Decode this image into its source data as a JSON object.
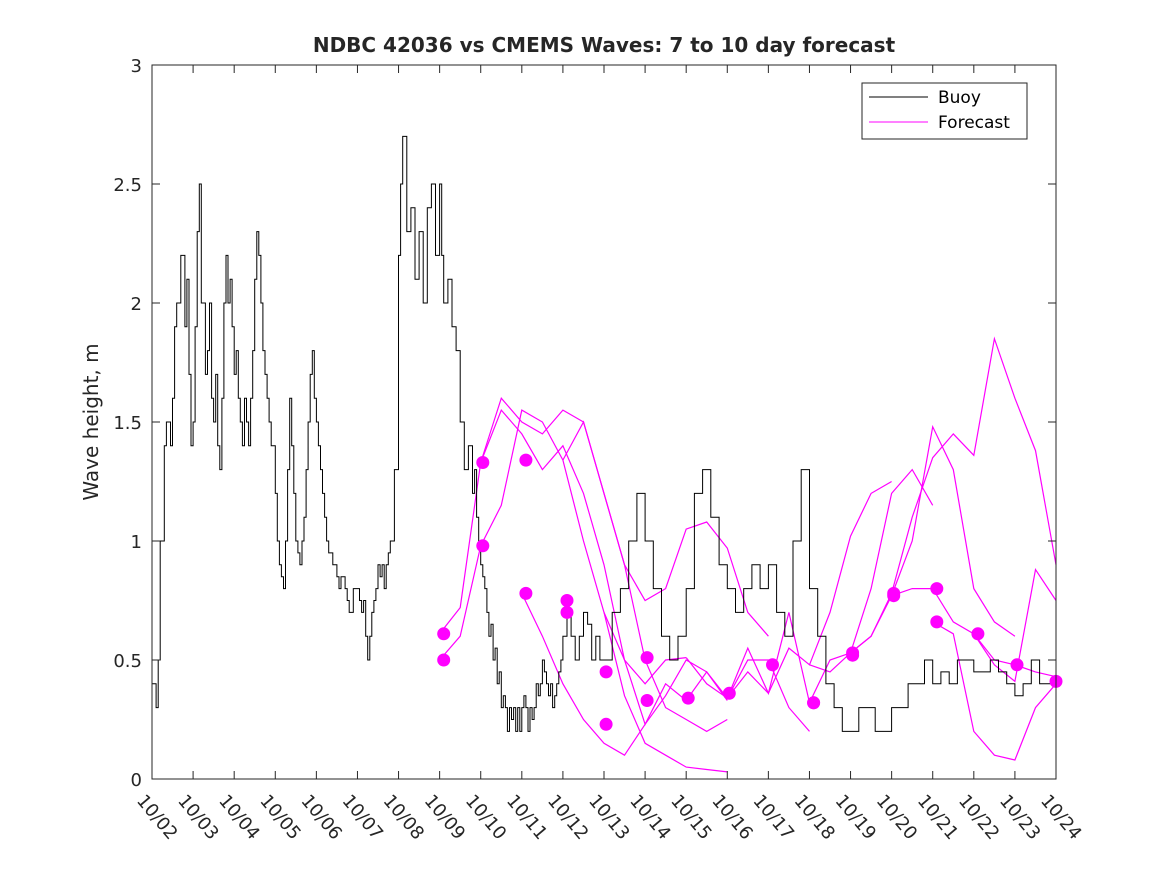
{
  "chart_data": {
    "type": "line",
    "title": "NDBC 42036 vs CMEMS Waves: 7 to 10 day forecast",
    "xlabel": "",
    "ylabel": "Wave height, m",
    "xlim": [
      0,
      22
    ],
    "ylim": [
      0,
      3
    ],
    "yticks": [
      0,
      0.5,
      1,
      1.5,
      2,
      2.5,
      3
    ],
    "ytick_labels": [
      "0",
      "0.5",
      "1",
      "1.5",
      "2",
      "2.5",
      "3"
    ],
    "xtick_labels": [
      "10/02",
      "10/03",
      "10/04",
      "10/05",
      "10/06",
      "10/07",
      "10/08",
      "10/09",
      "10/10",
      "10/11",
      "10/12",
      "10/13",
      "10/14",
      "10/15",
      "10/16",
      "10/17",
      "10/18",
      "10/19",
      "10/20",
      "10/21",
      "10/22",
      "10/23",
      "10/24"
    ],
    "legend": {
      "position": "top-right",
      "entries": [
        {
          "label": "Buoy",
          "color": "#000000"
        },
        {
          "label": "Forecast",
          "color": "#ff00ff"
        }
      ]
    },
    "colors": {
      "buoy": "#000000",
      "forecast": "#ff00ff",
      "axis": "#262626"
    },
    "buoy": {
      "name": "Buoy",
      "x": [
        0,
        0.1,
        0.15,
        0.2,
        0.3,
        0.35,
        0.45,
        0.5,
        0.55,
        0.6,
        0.7,
        0.8,
        0.85,
        0.9,
        0.95,
        1.0,
        1.05,
        1.1,
        1.15,
        1.2,
        1.3,
        1.35,
        1.4,
        1.45,
        1.5,
        1.55,
        1.6,
        1.65,
        1.7,
        1.75,
        1.8,
        1.85,
        1.9,
        1.95,
        2.0,
        2.05,
        2.1,
        2.15,
        2.2,
        2.25,
        2.3,
        2.35,
        2.4,
        2.45,
        2.5,
        2.55,
        2.6,
        2.65,
        2.7,
        2.75,
        2.8,
        2.85,
        2.9,
        3.0,
        3.05,
        3.1,
        3.15,
        3.2,
        3.25,
        3.3,
        3.35,
        3.4,
        3.45,
        3.5,
        3.55,
        3.6,
        3.65,
        3.7,
        3.75,
        3.8,
        3.85,
        3.9,
        3.95,
        4.0,
        4.05,
        4.1,
        4.15,
        4.2,
        4.25,
        4.3,
        4.4,
        4.5,
        4.55,
        4.6,
        4.7,
        4.75,
        4.8,
        4.9,
        5.0,
        5.05,
        5.1,
        5.15,
        5.2,
        5.25,
        5.3,
        5.35,
        5.4,
        5.45,
        5.5,
        5.55,
        5.6,
        5.65,
        5.7,
        5.75,
        5.8,
        5.9,
        6.0,
        6.05,
        6.1,
        6.2,
        6.3,
        6.4,
        6.5,
        6.6,
        6.7,
        6.8,
        6.9,
        7.0,
        7.05,
        7.1,
        7.2,
        7.3,
        7.4,
        7.5,
        7.6,
        7.7,
        7.8,
        7.85,
        7.9,
        7.95,
        8.0,
        8.05,
        8.1,
        8.15,
        8.2,
        8.25,
        8.3,
        8.35,
        8.4,
        8.45,
        8.5,
        8.55,
        8.6,
        8.65,
        8.7,
        8.75,
        8.8,
        8.85,
        8.9,
        8.95,
        9.0,
        9.05,
        9.1,
        9.15,
        9.2,
        9.25,
        9.3,
        9.35,
        9.4,
        9.45,
        9.5,
        9.55,
        9.6,
        9.65,
        9.7,
        9.75,
        9.8,
        9.85,
        9.9,
        9.95,
        10.0,
        10.1,
        10.2,
        10.3,
        10.4,
        10.5,
        10.6,
        10.7,
        10.8,
        10.9,
        11.0,
        11.2,
        11.4,
        11.6,
        11.8,
        12.0,
        12.2,
        12.4,
        12.6,
        12.8,
        13.0,
        13.2,
        13.4,
        13.6,
        13.8,
        14.0,
        14.2,
        14.4,
        14.6,
        14.8,
        15.0,
        15.2,
        15.4,
        15.6,
        15.8,
        16.0,
        16.2,
        16.4,
        16.6,
        16.8,
        17.0,
        17.2,
        17.4,
        17.6,
        17.8,
        18.0,
        18.2,
        18.4,
        18.6,
        18.8,
        19.0,
        19.2,
        19.4,
        19.6,
        19.8,
        20.0,
        20.2,
        20.4,
        20.6,
        20.8,
        21.0,
        21.2,
        21.4,
        21.6,
        21.8,
        22.0
      ],
      "y": [
        0.4,
        0.3,
        0.5,
        1.0,
        1.4,
        1.5,
        1.4,
        1.6,
        1.9,
        2.0,
        2.2,
        1.9,
        2.1,
        1.7,
        1.4,
        1.5,
        1.9,
        2.3,
        2.5,
        2.0,
        1.7,
        1.8,
        2.0,
        1.6,
        1.5,
        1.7,
        1.4,
        1.3,
        1.6,
        2.0,
        2.2,
        2.0,
        2.1,
        1.9,
        1.7,
        1.8,
        1.6,
        1.5,
        1.4,
        1.6,
        1.5,
        1.4,
        1.6,
        1.8,
        2.1,
        2.3,
        2.2,
        2.0,
        1.8,
        1.7,
        1.6,
        1.5,
        1.4,
        1.2,
        1.0,
        0.9,
        0.85,
        0.8,
        1.0,
        1.3,
        1.6,
        1.4,
        1.2,
        1.0,
        0.95,
        0.9,
        1.0,
        1.1,
        1.3,
        1.5,
        1.7,
        1.8,
        1.6,
        1.5,
        1.4,
        1.3,
        1.2,
        1.1,
        1.0,
        0.95,
        0.9,
        0.85,
        0.8,
        0.85,
        0.8,
        0.75,
        0.7,
        0.8,
        0.8,
        0.75,
        0.7,
        0.75,
        0.6,
        0.5,
        0.6,
        0.7,
        0.75,
        0.8,
        0.9,
        0.85,
        0.9,
        0.8,
        0.9,
        0.95,
        1.0,
        1.3,
        2.2,
        2.5,
        2.7,
        2.3,
        2.4,
        2.1,
        2.3,
        2.0,
        2.4,
        2.5,
        2.2,
        2.5,
        2.2,
        2.0,
        2.1,
        1.9,
        1.8,
        1.5,
        1.3,
        1.4,
        1.2,
        1.3,
        1.1,
        1.0,
        0.9,
        0.85,
        0.8,
        0.7,
        0.6,
        0.65,
        0.5,
        0.55,
        0.4,
        0.45,
        0.3,
        0.35,
        0.3,
        0.2,
        0.3,
        0.25,
        0.3,
        0.2,
        0.3,
        0.2,
        0.3,
        0.35,
        0.3,
        0.2,
        0.3,
        0.25,
        0.3,
        0.4,
        0.35,
        0.4,
        0.5,
        0.45,
        0.4,
        0.35,
        0.4,
        0.3,
        0.35,
        0.4,
        0.45,
        0.5,
        0.6,
        0.7,
        0.6,
        0.5,
        0.6,
        0.7,
        0.65,
        0.5,
        0.6,
        0.5,
        0.5,
        0.7,
        0.8,
        1.0,
        1.2,
        1.0,
        0.8,
        0.6,
        0.5,
        0.6,
        0.8,
        1.2,
        1.3,
        1.1,
        0.9,
        0.8,
        0.7,
        0.8,
        0.9,
        0.8,
        0.9,
        0.7,
        0.6,
        1.0,
        1.3,
        0.8,
        0.6,
        0.4,
        0.3,
        0.2,
        0.2,
        0.3,
        0.3,
        0.2,
        0.2,
        0.3,
        0.3,
        0.4,
        0.4,
        0.5,
        0.4,
        0.45,
        0.4,
        0.5,
        0.5,
        0.45,
        0.45,
        0.5,
        0.45,
        0.4,
        0.35,
        0.4,
        0.5,
        0.4,
        0.4,
        0.45
      ]
    },
    "forecast": [
      {
        "name": "Forecast",
        "x": [
          7.0,
          7.5,
          8.0,
          8.5,
          9.0,
          9.5,
          10.0,
          10.5,
          11.0,
          11.5,
          12.0,
          12.5,
          13.0,
          13.5,
          14.0
        ],
        "y": [
          0.5,
          0.6,
          0.98,
          1.15,
          1.55,
          1.5,
          1.34,
          1.0,
          0.7,
          0.35,
          0.15,
          0.1,
          0.05,
          0.04,
          0.03
        ]
      },
      {
        "name": "Forecast",
        "x": [
          7.0,
          7.5,
          8.0,
          8.5,
          9.0,
          9.5,
          10.0,
          10.5,
          11.0,
          11.5,
          12.0,
          12.5,
          13.0
        ],
        "y": [
          0.61,
          0.72,
          1.33,
          1.55,
          1.45,
          1.3,
          1.4,
          1.2,
          0.9,
          0.5,
          0.4,
          0.5,
          0.51
        ]
      },
      {
        "name": "Forecast",
        "x": [
          8.0,
          8.5,
          9.0,
          9.5,
          10.0,
          10.5,
          11.0,
          11.5,
          12.0,
          12.5,
          13.0,
          13.5,
          14.0
        ],
        "y": [
          1.33,
          1.6,
          1.5,
          1.45,
          1.55,
          1.5,
          1.2,
          0.9,
          0.5,
          0.3,
          0.25,
          0.2,
          0.25
        ]
      },
      {
        "name": "Forecast",
        "x": [
          9.0,
          9.5,
          10.0,
          10.5,
          11.0,
          11.5,
          12.0,
          12.5,
          13.0,
          13.5,
          14.0
        ],
        "y": [
          0.78,
          0.6,
          0.4,
          0.25,
          0.15,
          0.1,
          0.23,
          0.35,
          0.5,
          0.45,
          0.33
        ]
      },
      {
        "name": "Forecast",
        "x": [
          10.0,
          10.5,
          11.0,
          11.5,
          12.0,
          12.5,
          13.0,
          13.5,
          14.0,
          14.5,
          15.0
        ],
        "y": [
          1.34,
          1.5,
          1.2,
          0.9,
          0.75,
          0.8,
          1.05,
          1.08,
          0.97,
          0.7,
          0.6
        ]
      },
      {
        "name": "Forecast",
        "x": [
          11.0,
          11.5,
          12.0,
          12.5,
          13.0,
          13.5,
          14.0,
          14.5,
          15.0,
          15.5,
          16.0
        ],
        "y": [
          0.7,
          0.5,
          0.23,
          0.4,
          0.33,
          0.45,
          0.34,
          0.5,
          0.5,
          0.3,
          0.2
        ]
      },
      {
        "name": "Forecast",
        "x": [
          13.0,
          13.5,
          14.0,
          14.5,
          15.0,
          15.5,
          16.0,
          16.5,
          17.0,
          17.5,
          18.0
        ],
        "y": [
          0.51,
          0.4,
          0.34,
          0.45,
          0.36,
          0.55,
          0.48,
          0.7,
          1.02,
          1.2,
          1.25
        ]
      },
      {
        "name": "Forecast",
        "x": [
          14.0,
          14.5,
          15.0,
          15.5,
          16.0,
          16.5,
          17.0,
          17.5,
          18.0,
          18.5,
          19.0
        ],
        "y": [
          0.34,
          0.55,
          0.36,
          0.7,
          0.32,
          0.5,
          0.53,
          0.8,
          1.2,
          1.3,
          1.15
        ]
      },
      {
        "name": "Forecast",
        "x": [
          16.0,
          16.5,
          17.0,
          17.5,
          18.0,
          18.5,
          19.0,
          19.5,
          20.0,
          20.5,
          21.0
        ],
        "y": [
          0.48,
          0.45,
          0.53,
          0.6,
          0.77,
          1.0,
          1.48,
          1.3,
          0.8,
          0.66,
          0.6
        ]
      },
      {
        "name": "Forecast",
        "x": [
          17.0,
          17.5,
          18.0,
          18.5,
          19.0,
          19.5,
          20.0,
          20.5,
          21.0,
          21.5,
          22.0
        ],
        "y": [
          0.53,
          0.6,
          0.78,
          1.1,
          1.35,
          1.45,
          1.36,
          1.85,
          1.6,
          1.38,
          0.9
        ]
      },
      {
        "name": "Forecast",
        "x": [
          18.0,
          18.5,
          19.0,
          19.5,
          20.0,
          20.5,
          21.0,
          21.5,
          22.0
        ],
        "y": [
          0.77,
          0.8,
          0.8,
          0.66,
          0.61,
          0.5,
          0.48,
          0.45,
          0.43
        ]
      },
      {
        "name": "Forecast",
        "x": [
          19.0,
          19.5,
          20.0,
          20.5,
          21.0,
          21.5,
          22.0
        ],
        "y": [
          0.66,
          0.61,
          0.2,
          0.1,
          0.08,
          0.3,
          0.4
        ]
      },
      {
        "name": "Forecast",
        "x": [
          20.0,
          20.5,
          21.0,
          21.5,
          22.0
        ],
        "y": [
          0.61,
          0.48,
          0.41,
          0.88,
          0.75
        ]
      }
    ],
    "forecast_markers": {
      "name": "Forecast start points",
      "x": [
        7.1,
        7.1,
        8.05,
        8.05,
        9.1,
        9.1,
        10.1,
        10.1,
        11.05,
        11.05,
        12.05,
        12.05,
        13.05,
        14.05,
        15.1,
        16.1,
        16.1,
        17.05,
        17.05,
        18.05,
        18.05,
        19.1,
        19.1,
        20.1,
        21.05,
        22.0
      ],
      "y": [
        0.61,
        0.5,
        1.33,
        0.98,
        1.34,
        0.78,
        0.75,
        0.7,
        0.45,
        0.23,
        0.51,
        0.33,
        0.34,
        0.36,
        0.48,
        0.32,
        0.32,
        0.53,
        0.52,
        0.78,
        0.77,
        0.8,
        0.66,
        0.61,
        0.48,
        0.41
      ]
    }
  }
}
